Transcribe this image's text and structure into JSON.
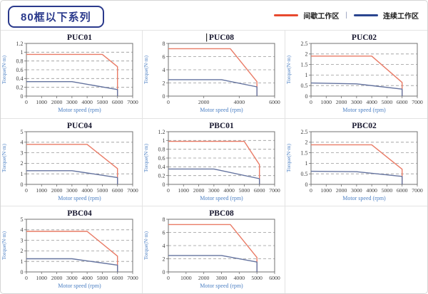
{
  "header": {
    "series_title": "80框以下系列"
  },
  "legend": {
    "separator": "|",
    "items": [
      {
        "label": "间歇工作区",
        "color": "#e8492e"
      },
      {
        "label": "连续工作区",
        "color": "#2a458f"
      }
    ]
  },
  "colors": {
    "red_line": "#e97b66",
    "blue_line": "#64739f",
    "axis_label_blue": "#4b7fc3",
    "tick_text": "#404040",
    "title_text": "#18182f",
    "grid_dash": "#999999",
    "plot_border": "#707070",
    "cursor_bar": "#333333"
  },
  "grid": {
    "cells": [
      "PUC01",
      "PUC08",
      "PUC02",
      "PUC04",
      "PBC01",
      "PBC02",
      "PBC04",
      "PBC08",
      ""
    ]
  },
  "chart_data": [
    {
      "id": "PUC01",
      "type": "line",
      "title": "PUC01",
      "xlabel": "Motor speed (rpm)",
      "ylabel": "Torque(N·m)",
      "xlim": [
        0,
        7000
      ],
      "xticks": [
        0,
        1000,
        2000,
        3000,
        4000,
        5000,
        6000,
        7000
      ],
      "ylim": [
        0,
        1.2
      ],
      "yticks": [
        0,
        0.2,
        0.4,
        0.6,
        0.8,
        1,
        1.2
      ],
      "has_text_cursor": false,
      "series": [
        {
          "name": "间歇工作区",
          "color_key": "red_line",
          "points": [
            [
              0,
              0.95
            ],
            [
              5000,
              0.95
            ],
            [
              6000,
              0.67
            ],
            [
              6000,
              0
            ]
          ]
        },
        {
          "name": "连续工作区",
          "color_key": "blue_line",
          "points": [
            [
              0,
              0.33
            ],
            [
              3000,
              0.33
            ],
            [
              6000,
              0.15
            ],
            [
              6000,
              0
            ]
          ]
        }
      ]
    },
    {
      "id": "PUC08",
      "type": "line",
      "title": "PUC08",
      "xlabel": "Motor speed (rpm)",
      "ylabel": "Torque(N·m)",
      "xlim": [
        0,
        6000
      ],
      "xticks": [
        0,
        2000,
        4000,
        6000
      ],
      "ylim": [
        0,
        8
      ],
      "yticks": [
        0,
        2,
        4,
        6,
        8
      ],
      "has_text_cursor": true,
      "series": [
        {
          "name": "间歇工作区",
          "color_key": "red_line",
          "points": [
            [
              0,
              7.2
            ],
            [
              3500,
              7.2
            ],
            [
              5000,
              2.2
            ],
            [
              5000,
              0
            ]
          ]
        },
        {
          "name": "连续工作区",
          "color_key": "blue_line",
          "points": [
            [
              0,
              2.5
            ],
            [
              3000,
              2.5
            ],
            [
              5000,
              1.4
            ],
            [
              5000,
              0
            ]
          ]
        }
      ]
    },
    {
      "id": "PUC02",
      "type": "line",
      "title": "PUC02",
      "xlabel": "Motor speed (rpm)",
      "ylabel": "Torque(N·m)",
      "xlim": [
        0,
        7000
      ],
      "xticks": [
        0,
        1000,
        2000,
        3000,
        4000,
        5000,
        6000,
        7000
      ],
      "ylim": [
        0,
        2.5
      ],
      "yticks": [
        0,
        0.5,
        1,
        1.5,
        2,
        2.5
      ],
      "has_text_cursor": false,
      "series": [
        {
          "name": "间歇工作区",
          "color_key": "red_line",
          "points": [
            [
              0,
              1.9
            ],
            [
              4000,
              1.9
            ],
            [
              6000,
              0.65
            ],
            [
              6000,
              0
            ]
          ]
        },
        {
          "name": "连续工作区",
          "color_key": "blue_line",
          "points": [
            [
              0,
              0.62
            ],
            [
              3000,
              0.58
            ],
            [
              6000,
              0.33
            ],
            [
              6000,
              0
            ]
          ]
        }
      ]
    },
    {
      "id": "PUC04",
      "type": "line",
      "title": "PUC04",
      "xlabel": "Motor speed (rpm)",
      "ylabel": "Torque(N·m)",
      "xlim": [
        0,
        7000
      ],
      "xticks": [
        0,
        1000,
        2000,
        3000,
        4000,
        5000,
        6000,
        7000
      ],
      "ylim": [
        0,
        5
      ],
      "yticks": [
        0,
        1,
        2,
        3,
        4,
        5
      ],
      "has_text_cursor": false,
      "series": [
        {
          "name": "间歇工作区",
          "color_key": "red_line",
          "points": [
            [
              0,
              3.8
            ],
            [
              4000,
              3.8
            ],
            [
              6000,
              1.5
            ],
            [
              6000,
              0
            ]
          ]
        },
        {
          "name": "连续工作区",
          "color_key": "blue_line",
          "points": [
            [
              0,
              1.3
            ],
            [
              3000,
              1.3
            ],
            [
              6000,
              0.65
            ],
            [
              6000,
              0
            ]
          ]
        }
      ]
    },
    {
      "id": "PBC01",
      "type": "line",
      "title": "PBC01",
      "xlabel": "Motor speed (rpm)",
      "ylabel": "Torque(N·m)",
      "xlim": [
        0,
        7000
      ],
      "xticks": [
        0,
        1000,
        2000,
        3000,
        4000,
        5000,
        6000,
        7000
      ],
      "ylim": [
        0,
        1.2
      ],
      "yticks": [
        0,
        0.2,
        0.4,
        0.6,
        0.8,
        1,
        1.2
      ],
      "has_text_cursor": false,
      "series": [
        {
          "name": "间歇工作区",
          "color_key": "red_line",
          "points": [
            [
              0,
              0.98
            ],
            [
              5000,
              0.98
            ],
            [
              6000,
              0.45
            ],
            [
              6000,
              0
            ]
          ]
        },
        {
          "name": "连续工作区",
          "color_key": "blue_line",
          "points": [
            [
              0,
              0.35
            ],
            [
              3000,
              0.35
            ],
            [
              6000,
              0.13
            ],
            [
              6000,
              0
            ]
          ]
        }
      ]
    },
    {
      "id": "PBC02",
      "type": "line",
      "title": "PBC02",
      "xlabel": "Motor speed (rpm)",
      "ylabel": "Torque(N·m)",
      "xlim": [
        0,
        7000
      ],
      "xticks": [
        0,
        1000,
        2000,
        3000,
        4000,
        5000,
        6000,
        7000
      ],
      "ylim": [
        0,
        2.5
      ],
      "yticks": [
        0,
        0.5,
        1,
        1.5,
        2,
        2.5
      ],
      "has_text_cursor": false,
      "series": [
        {
          "name": "间歇工作区",
          "color_key": "red_line",
          "points": [
            [
              0,
              1.88
            ],
            [
              4000,
              1.88
            ],
            [
              6000,
              0.72
            ],
            [
              6000,
              0
            ]
          ]
        },
        {
          "name": "连续工作区",
          "color_key": "blue_line",
          "points": [
            [
              0,
              0.62
            ],
            [
              3000,
              0.6
            ],
            [
              6000,
              0.38
            ],
            [
              6000,
              0
            ]
          ]
        }
      ]
    },
    {
      "id": "PBC04",
      "type": "line",
      "title": "PBC04",
      "xlabel": "Motor speed (rpm)",
      "ylabel": "Torque(N·m)",
      "xlim": [
        0,
        7000
      ],
      "xticks": [
        0,
        1000,
        2000,
        3000,
        4000,
        5000,
        6000,
        7000
      ],
      "ylim": [
        0,
        5
      ],
      "yticks": [
        0,
        1,
        2,
        3,
        4,
        5
      ],
      "has_text_cursor": false,
      "series": [
        {
          "name": "间歇工作区",
          "color_key": "red_line",
          "points": [
            [
              0,
              3.85
            ],
            [
              4000,
              3.85
            ],
            [
              6000,
              1.5
            ],
            [
              6000,
              0
            ]
          ]
        },
        {
          "name": "连续工作区",
          "color_key": "blue_line",
          "points": [
            [
              0,
              1.25
            ],
            [
              3000,
              1.25
            ],
            [
              6000,
              0.65
            ],
            [
              6000,
              0
            ]
          ]
        }
      ]
    },
    {
      "id": "PBC08",
      "type": "line",
      "title": "PBC08",
      "xlabel": "Motor speed (rpm)",
      "ylabel": "Torque(N·m)",
      "xlim": [
        0,
        6000
      ],
      "xticks": [
        0,
        1000,
        2000,
        3000,
        4000,
        5000,
        6000
      ],
      "ylim": [
        0,
        8
      ],
      "yticks": [
        0,
        2,
        4,
        6,
        8
      ],
      "has_text_cursor": false,
      "series": [
        {
          "name": "间歇工作区",
          "color_key": "red_line",
          "points": [
            [
              0,
              7.2
            ],
            [
              3500,
              7.2
            ],
            [
              5000,
              2.2
            ],
            [
              5000,
              0
            ]
          ]
        },
        {
          "name": "连续工作区",
          "color_key": "blue_line",
          "points": [
            [
              0,
              2.5
            ],
            [
              3000,
              2.5
            ],
            [
              5000,
              1.5
            ],
            [
              5000,
              0
            ]
          ]
        }
      ]
    }
  ]
}
